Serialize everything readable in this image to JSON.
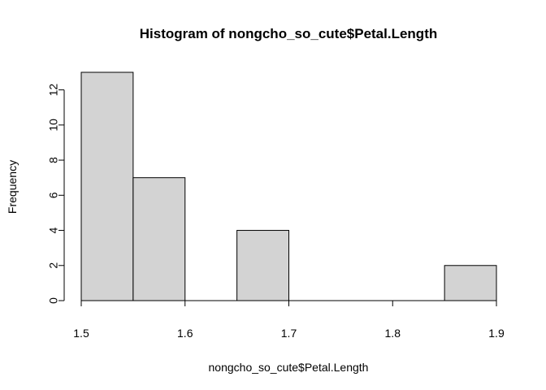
{
  "chart_data": {
    "type": "bar",
    "title": "Histogram of nongcho_so_cute$Petal.Length",
    "xlabel": "nongcho_so_cute$Petal.Length",
    "ylabel": "Frequency",
    "bins": [
      {
        "start": 1.5,
        "end": 1.55,
        "count": 13
      },
      {
        "start": 1.55,
        "end": 1.6,
        "count": 7
      },
      {
        "start": 1.6,
        "end": 1.65,
        "count": 0
      },
      {
        "start": 1.65,
        "end": 1.7,
        "count": 4
      },
      {
        "start": 1.7,
        "end": 1.75,
        "count": 0
      },
      {
        "start": 1.75,
        "end": 1.8,
        "count": 0
      },
      {
        "start": 1.8,
        "end": 1.85,
        "count": 0
      },
      {
        "start": 1.85,
        "end": 1.9,
        "count": 2
      }
    ],
    "xlim": [
      1.5,
      1.9
    ],
    "ylim": [
      0,
      13
    ],
    "x_ticks": [
      {
        "value": 1.5,
        "label": "1.5"
      },
      {
        "value": 1.6,
        "label": "1.6"
      },
      {
        "value": 1.7,
        "label": "1.7"
      },
      {
        "value": 1.8,
        "label": "1.8"
      },
      {
        "value": 1.9,
        "label": "1.9"
      }
    ],
    "y_ticks": [
      {
        "value": 0,
        "label": "0"
      },
      {
        "value": 2,
        "label": "2"
      },
      {
        "value": 4,
        "label": "4"
      },
      {
        "value": 6,
        "label": "6"
      },
      {
        "value": 8,
        "label": "8"
      },
      {
        "value": 10,
        "label": "10"
      },
      {
        "value": 12,
        "label": "12"
      }
    ],
    "bar_fill": "#d3d3d3",
    "bar_stroke": "#000000",
    "grid": false
  }
}
